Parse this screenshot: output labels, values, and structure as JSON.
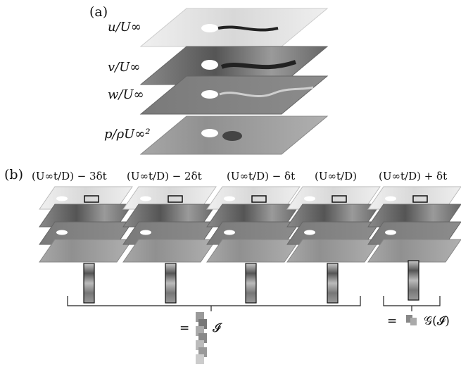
{
  "panel_a": {
    "label": "(a)",
    "fields": [
      {
        "label": "u/U∞"
      },
      {
        "label": "v/U∞"
      },
      {
        "label": "w/U∞"
      },
      {
        "label": "p/ρU∞²"
      }
    ]
  },
  "panel_b": {
    "label": "(b)",
    "time_labels": [
      "(U∞t/D) − 3δt",
      "(U∞t/D) − 2δt",
      "(U∞t/D) − δt",
      "(U∞t/D)",
      "(U∞t/D) + δt"
    ],
    "input_label": "= ",
    "input_symbol": "𝓘",
    "output_label": "= ",
    "output_symbol": "𝒢(𝓘)"
  }
}
